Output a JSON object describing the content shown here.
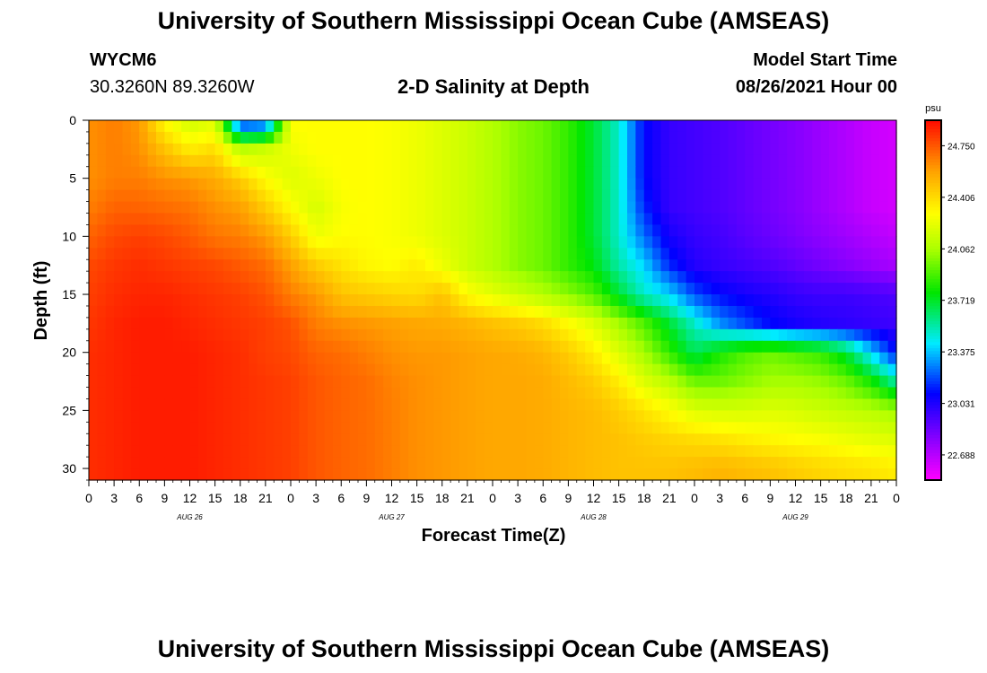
{
  "header": {
    "title": "University of Southern Mississippi Ocean Cube (AMSEAS)",
    "station_id": "WYCM6",
    "coordinates": "30.3260N  89.3260W",
    "plot_title": "2-D Salinity at Depth",
    "model_start_label": "Model Start Time",
    "model_start_value": "08/26/2021 Hour 00"
  },
  "footer": {
    "title": "University of Southern Mississippi Ocean Cube (AMSEAS)"
  },
  "chart_data": {
    "type": "heatmap",
    "title": "2-D Salinity at Depth",
    "xlabel": "Forecast Time(Z)",
    "ylabel": "Depth (ft)",
    "x_hours": [
      0,
      3,
      6,
      9,
      12,
      15,
      18,
      21,
      24,
      27,
      30,
      33,
      36,
      39,
      42,
      45,
      48,
      51,
      54,
      57,
      60,
      63,
      66,
      69,
      72,
      75,
      78,
      81,
      84,
      87,
      90,
      93,
      96
    ],
    "x_tick_labels": [
      "0",
      "3",
      "6",
      "9",
      "12",
      "15",
      "18",
      "21",
      "0",
      "3",
      "6",
      "9",
      "12",
      "15",
      "18",
      "21",
      "0",
      "3",
      "6",
      "9",
      "12",
      "15",
      "18",
      "21",
      "0",
      "3",
      "6",
      "9",
      "12",
      "15",
      "18",
      "21",
      "0"
    ],
    "day_labels": [
      {
        "label": "AUG 26",
        "hour": 12
      },
      {
        "label": "AUG 27",
        "hour": 36
      },
      {
        "label": "AUG 28",
        "hour": 60
      },
      {
        "label": "AUG 29",
        "hour": 84
      }
    ],
    "y_ticks": [
      0,
      5,
      10,
      15,
      20,
      25,
      30
    ],
    "ylim": [
      0,
      31
    ],
    "xlim": [
      0,
      96
    ],
    "colorbar": {
      "unit": "psu",
      "tick_values": [
        24.75,
        24.406,
        24.062,
        23.719,
        23.375,
        23.031,
        22.688
      ],
      "tick_labels": [
        "24.750",
        "24.406",
        "24.062",
        "23.719",
        "23.375",
        "23.031",
        "22.688"
      ],
      "min": 22.52,
      "max": 24.92
    },
    "depth_levels": [
      0,
      2.5,
      5,
      7.5,
      10,
      12.5,
      15,
      17.5,
      20,
      22.5,
      25,
      27.5,
      30
    ],
    "salinity": [
      [
        24.62,
        24.66,
        24.6,
        24.3,
        24.15,
        24.2,
        23.05,
        23.1,
        24.3,
        24.3,
        24.3,
        24.3,
        24.28,
        24.25,
        24.2,
        24.15,
        24.08,
        24.0,
        23.95,
        23.85,
        23.7,
        23.5,
        23.1,
        22.98,
        22.95,
        22.92,
        22.88,
        22.84,
        22.8,
        22.75,
        22.7,
        22.65,
        22.62
      ],
      [
        24.62,
        24.66,
        24.62,
        24.48,
        24.35,
        24.4,
        24.1,
        24.15,
        24.25,
        24.3,
        24.3,
        24.3,
        24.28,
        24.25,
        24.2,
        24.15,
        24.08,
        24.0,
        23.95,
        23.85,
        23.7,
        23.5,
        23.1,
        22.98,
        22.95,
        22.92,
        22.88,
        22.84,
        22.8,
        22.75,
        22.7,
        22.65,
        22.62
      ],
      [
        24.62,
        24.66,
        24.66,
        24.62,
        24.6,
        24.55,
        24.45,
        24.3,
        24.2,
        24.25,
        24.3,
        24.3,
        24.28,
        24.25,
        24.2,
        24.15,
        24.08,
        24.0,
        23.95,
        23.85,
        23.7,
        23.5,
        23.1,
        22.98,
        22.95,
        22.92,
        22.88,
        22.84,
        22.8,
        22.75,
        22.7,
        22.65,
        22.62
      ],
      [
        24.66,
        24.72,
        24.72,
        24.7,
        24.68,
        24.62,
        24.58,
        24.45,
        24.3,
        24.18,
        24.28,
        24.3,
        24.28,
        24.25,
        24.2,
        24.15,
        24.08,
        24.0,
        23.95,
        23.85,
        23.7,
        23.5,
        23.15,
        22.98,
        22.95,
        22.92,
        22.88,
        22.84,
        22.8,
        22.75,
        22.7,
        22.65,
        22.62
      ],
      [
        24.72,
        24.78,
        24.8,
        24.78,
        24.74,
        24.68,
        24.66,
        24.6,
        24.45,
        24.25,
        24.3,
        24.3,
        24.28,
        24.25,
        24.2,
        24.15,
        24.08,
        24.0,
        23.95,
        23.85,
        23.7,
        23.5,
        23.25,
        23.05,
        22.98,
        22.95,
        22.9,
        22.86,
        22.82,
        22.78,
        22.74,
        22.7,
        22.66
      ],
      [
        24.78,
        24.82,
        24.84,
        24.82,
        24.8,
        24.78,
        24.74,
        24.7,
        24.58,
        24.45,
        24.38,
        24.32,
        24.3,
        24.35,
        24.25,
        24.15,
        24.08,
        24.0,
        23.95,
        23.85,
        23.75,
        23.55,
        23.4,
        23.15,
        23.02,
        22.98,
        22.95,
        22.92,
        22.88,
        22.84,
        22.8,
        22.76,
        22.72
      ],
      [
        24.8,
        24.84,
        24.86,
        24.86,
        24.84,
        24.82,
        24.8,
        24.76,
        24.66,
        24.6,
        24.48,
        24.45,
        24.42,
        24.4,
        24.48,
        24.3,
        24.22,
        24.15,
        24.08,
        24.0,
        23.9,
        23.7,
        23.5,
        23.4,
        23.2,
        23.1,
        23.05,
        23.02,
        22.98,
        22.96,
        22.96,
        22.94,
        22.92
      ],
      [
        24.82,
        24.86,
        24.88,
        24.88,
        24.86,
        24.84,
        24.82,
        24.8,
        24.76,
        24.66,
        24.62,
        24.6,
        24.58,
        24.56,
        24.55,
        24.52,
        24.48,
        24.45,
        24.4,
        24.3,
        24.2,
        24.05,
        23.9,
        23.7,
        23.5,
        23.3,
        23.2,
        23.1,
        23.05,
        23.02,
        23.0,
        22.98,
        22.96
      ],
      [
        24.84,
        24.86,
        24.88,
        24.88,
        24.88,
        24.86,
        24.84,
        24.8,
        24.78,
        24.72,
        24.7,
        24.66,
        24.62,
        24.6,
        24.6,
        24.58,
        24.56,
        24.55,
        24.52,
        24.45,
        24.35,
        24.2,
        24.05,
        23.85,
        23.65,
        23.8,
        23.9,
        23.95,
        23.9,
        23.85,
        23.7,
        23.4,
        23.1
      ],
      [
        24.84,
        24.86,
        24.88,
        24.88,
        24.88,
        24.86,
        24.84,
        24.82,
        24.8,
        24.75,
        24.72,
        24.7,
        24.65,
        24.62,
        24.6,
        24.58,
        24.56,
        24.56,
        24.55,
        24.5,
        24.45,
        24.35,
        24.2,
        24.1,
        23.95,
        23.95,
        24.0,
        24.05,
        24.05,
        24.02,
        23.95,
        23.8,
        23.55
      ],
      [
        24.84,
        24.86,
        24.88,
        24.88,
        24.88,
        24.86,
        24.84,
        24.82,
        24.8,
        24.75,
        24.72,
        24.7,
        24.66,
        24.62,
        24.6,
        24.58,
        24.56,
        24.56,
        24.55,
        24.52,
        24.5,
        24.45,
        24.38,
        24.3,
        24.2,
        24.18,
        24.18,
        24.2,
        24.18,
        24.15,
        24.12,
        24.1,
        24.05
      ],
      [
        24.84,
        24.86,
        24.88,
        24.88,
        24.88,
        24.86,
        24.84,
        24.82,
        24.8,
        24.75,
        24.72,
        24.7,
        24.66,
        24.62,
        24.6,
        24.58,
        24.56,
        24.56,
        24.55,
        24.52,
        24.5,
        24.48,
        24.45,
        24.42,
        24.4,
        24.38,
        24.35,
        24.32,
        24.3,
        24.28,
        24.25,
        24.22,
        24.2
      ],
      [
        24.84,
        24.86,
        24.88,
        24.88,
        24.88,
        24.86,
        24.84,
        24.82,
        24.8,
        24.75,
        24.72,
        24.7,
        24.66,
        24.62,
        24.6,
        24.58,
        24.56,
        24.56,
        24.55,
        24.52,
        24.5,
        24.48,
        24.48,
        24.48,
        24.5,
        24.52,
        24.5,
        24.48,
        24.45,
        24.42,
        24.4,
        24.38,
        24.35
      ]
    ]
  }
}
